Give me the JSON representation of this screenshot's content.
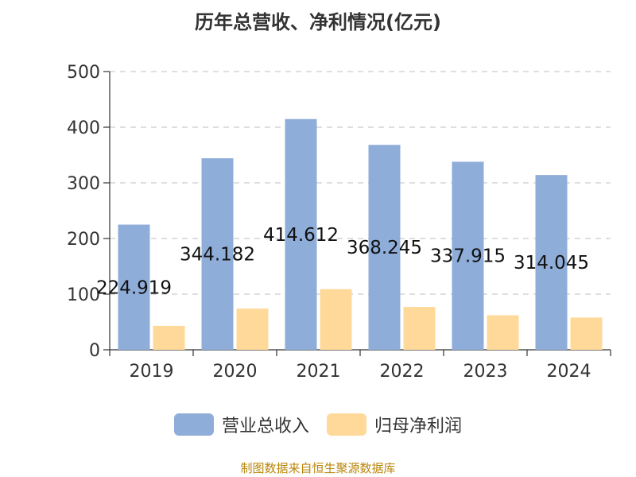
{
  "title": "历年总营收、净利情况(亿元)",
  "source": "制图数据来自恒生聚源数据库",
  "colors": {
    "revenue": "#8eadd9",
    "profit": "#ffd999",
    "grid": "#cccccc",
    "axis": "#333333",
    "source": "#b8860b"
  },
  "legend": [
    {
      "name": "营业总收入",
      "color": "#8eadd9"
    },
    {
      "name": "归母净利润",
      "color": "#ffd999"
    }
  ],
  "chart_data": {
    "type": "bar",
    "categories": [
      "2019",
      "2020",
      "2021",
      "2022",
      "2023",
      "2024"
    ],
    "series": [
      {
        "name": "营业总收入",
        "values": [
          224.919,
          344.182,
          414.612,
          368.245,
          337.915,
          314.045
        ],
        "labels": [
          "224.919",
          "344.182",
          "414.612",
          "368.245",
          "337.915",
          "314.045"
        ]
      },
      {
        "name": "归母净利润",
        "values": [
          43,
          74,
          109,
          77,
          62,
          58
        ]
      }
    ],
    "ylim": [
      0,
      500
    ],
    "yticks": [
      0,
      100,
      200,
      300,
      400,
      500
    ],
    "grid": true,
    "legend_position": "bottom"
  }
}
